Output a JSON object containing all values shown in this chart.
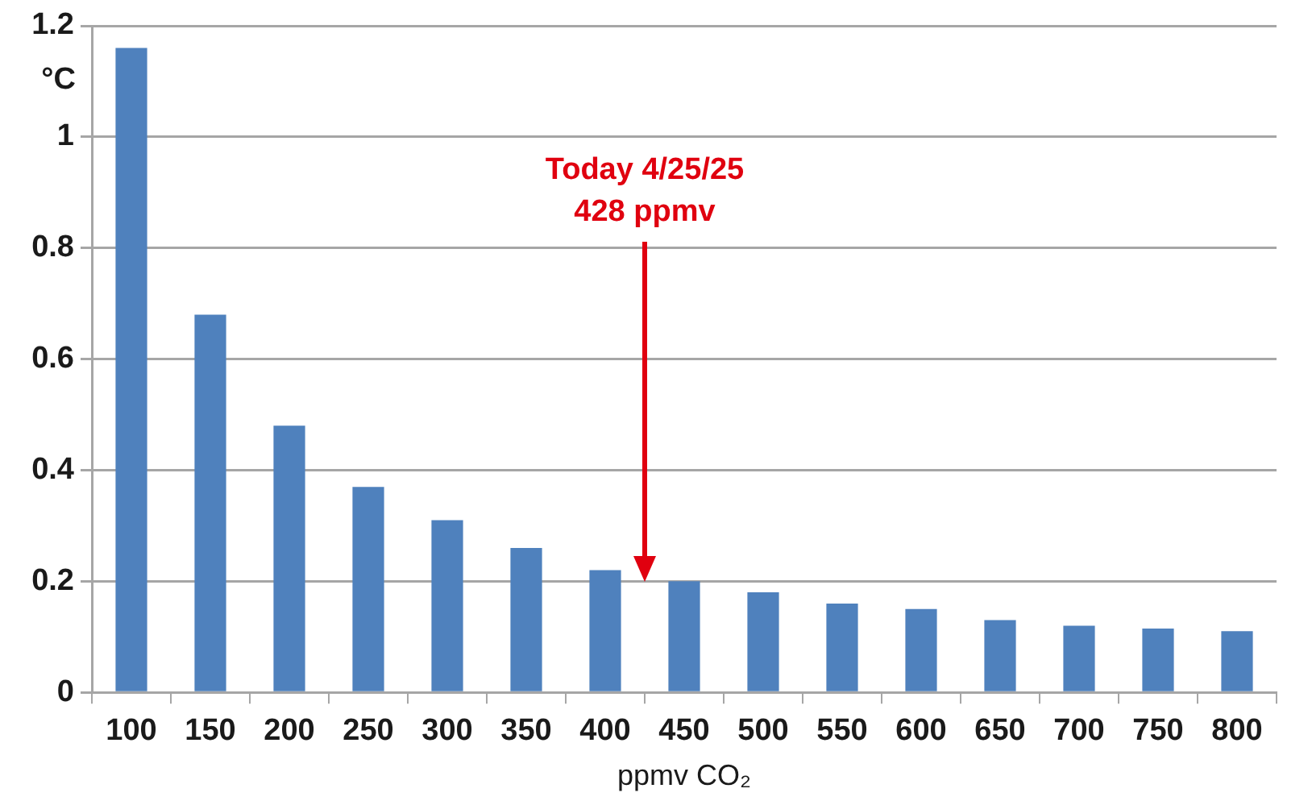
{
  "chart_data": {
    "type": "bar",
    "categories": [
      "100",
      "150",
      "200",
      "250",
      "300",
      "350",
      "400",
      "450",
      "500",
      "550",
      "600",
      "650",
      "700",
      "750",
      "800"
    ],
    "values": [
      1.16,
      0.68,
      0.48,
      0.37,
      0.31,
      0.26,
      0.22,
      0.2,
      0.18,
      0.16,
      0.15,
      0.13,
      0.12,
      0.115,
      0.11
    ],
    "color": "#4f81bd",
    "xlabel": "ppmv CO₂",
    "ylabel": "°C",
    "ylim": [
      0,
      1.2
    ],
    "yticks": [
      0,
      0.2,
      0.4,
      0.6,
      0.8,
      1,
      1.2
    ],
    "grid": "y",
    "annotations": [
      "Today 4/25/25\n428 ppmv"
    ]
  }
}
